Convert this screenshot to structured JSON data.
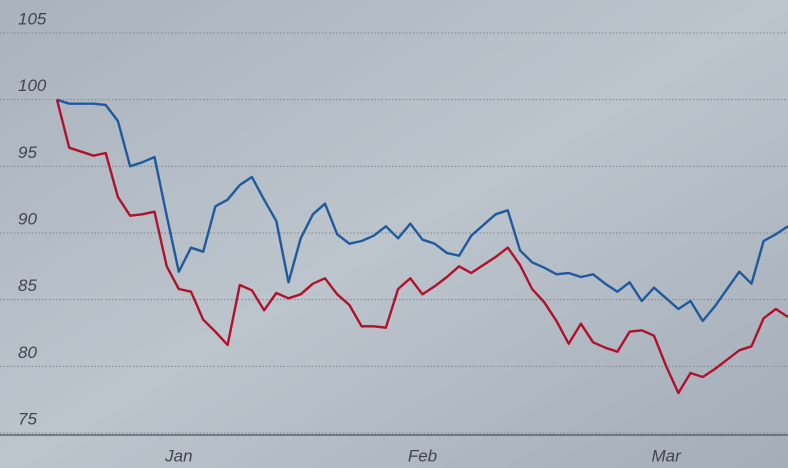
{
  "chart_data": {
    "type": "line",
    "categories": [
      null,
      null,
      null,
      null,
      null,
      null,
      null,
      null,
      null,
      null,
      "Jan",
      null,
      null,
      null,
      null,
      null,
      null,
      null,
      null,
      null,
      null,
      null,
      null,
      null,
      null,
      null,
      null,
      null,
      null,
      null,
      "Feb",
      null,
      null,
      null,
      null,
      null,
      null,
      null,
      null,
      null,
      null,
      null,
      null,
      null,
      null,
      null,
      null,
      null,
      null,
      null,
      "Mar",
      null,
      null,
      null,
      null,
      null,
      null,
      null,
      null,
      null,
      null
    ],
    "series": [
      {
        "color": "#1f5a9e",
        "values": [
          100,
          99.7,
          99.7,
          99.7,
          99.6,
          98.4,
          95.0,
          95.3,
          95.7,
          91.3,
          87.1,
          88.9,
          88.6,
          92.0,
          92.5,
          93.6,
          94.2,
          92.5,
          90.9,
          86.3,
          89.6,
          91.4,
          92.2,
          89.9,
          89.2,
          89.4,
          89.8,
          90.5,
          89.6,
          90.7,
          89.5,
          89.2,
          88.5,
          88.3,
          89.8,
          90.6,
          91.4,
          91.7,
          88.7,
          87.8,
          87.4,
          86.9,
          87.0,
          86.7,
          86.9,
          86.2,
          85.6,
          86.3,
          84.9,
          85.9,
          85.1,
          84.3,
          84.9,
          83.4,
          84.5,
          85.8,
          87.1,
          86.2,
          89.4,
          89.9,
          90.5
        ]
      },
      {
        "color": "#b0112b",
        "values": [
          100,
          96.4,
          96.1,
          95.8,
          96.0,
          92.7,
          91.3,
          91.4,
          91.6,
          87.5,
          85.8,
          85.6,
          83.5,
          82.6,
          81.6,
          86.1,
          85.7,
          84.2,
          85.5,
          85.1,
          85.4,
          86.2,
          86.6,
          85.4,
          84.6,
          83.0,
          83.0,
          82.9,
          85.8,
          86.6,
          85.4,
          86.0,
          86.7,
          87.5,
          87.0,
          87.6,
          88.2,
          88.9,
          87.6,
          85.8,
          84.8,
          83.4,
          81.7,
          83.2,
          81.8,
          81.4,
          81.1,
          82.6,
          82.7,
          82.3,
          80.0,
          78.0,
          79.5,
          79.2,
          79.8,
          80.5,
          81.2,
          81.5,
          83.6,
          84.3,
          83.7
        ]
      }
    ],
    "ylim": [
      75,
      105
    ],
    "yticks": [
      75,
      80,
      85,
      90,
      95,
      100,
      105
    ],
    "grid": true
  }
}
